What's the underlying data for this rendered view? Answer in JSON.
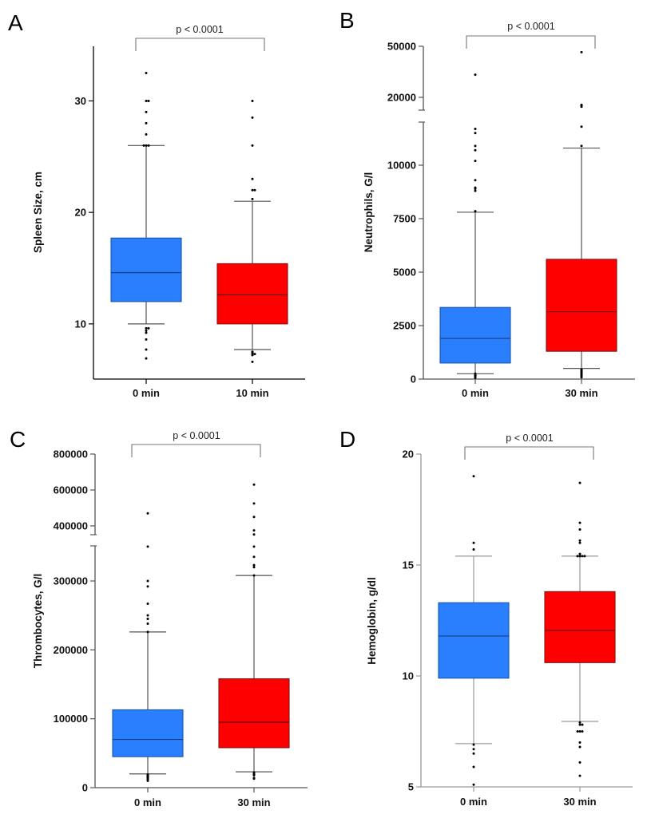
{
  "figure": {
    "groups_color": {
      "0 min": "#2a7fff",
      "later": "#ff0000"
    }
  },
  "chart_data": [
    {
      "id": "A",
      "type": "box",
      "panel_letter": "A",
      "title": "",
      "xlabel": "",
      "ylabel": "Spleen Size, cm",
      "categories": [
        "0 min",
        "10 min"
      ],
      "colors": [
        "#2a7fff",
        "#ff0000"
      ],
      "yticks": [
        10,
        20,
        30
      ],
      "ylim": [
        5,
        35
      ],
      "axis_break": null,
      "significance": {
        "label": "p < 0.0001",
        "between": [
          0,
          1
        ]
      },
      "series": [
        {
          "name": "0 min",
          "q1": 12.0,
          "median": 14.6,
          "q3": 17.7,
          "whisker_low": 10.0,
          "whisker_high": 26.0,
          "outliers": [
            32.5,
            30.0,
            30.0,
            29.0,
            28.0,
            27.0,
            26.0,
            26.0,
            26.0,
            9.6,
            9.6,
            9.4,
            9.2,
            8.6,
            7.7,
            6.9
          ]
        },
        {
          "name": "10 min",
          "q1": 10.0,
          "median": 12.6,
          "q3": 15.4,
          "whisker_low": 7.7,
          "whisker_high": 21.0,
          "outliers": [
            30.0,
            28.5,
            26.0,
            23.0,
            22.0,
            22.0,
            21.2,
            7.5,
            7.4,
            7.3,
            7.3,
            7.2,
            6.6
          ]
        }
      ],
      "grid": false,
      "legend": "none"
    },
    {
      "id": "B",
      "type": "box",
      "panel_letter": "B",
      "title": "",
      "xlabel": "",
      "ylabel": "Neutrophils, G/l",
      "categories": [
        "0 min",
        "30 min"
      ],
      "colors": [
        "#2a7fff",
        "#ff0000"
      ],
      "yticks": [
        0,
        2500,
        5000,
        7500,
        10000,
        20000,
        50000
      ],
      "ylim": [
        0,
        50000
      ],
      "axis_break": {
        "lower_range": [
          0,
          12000
        ],
        "upper_range": [
          15000,
          50000
        ],
        "upper_scale": "log"
      },
      "significance": {
        "label": "p < 0.0001",
        "between": [
          0,
          1
        ]
      },
      "series": [
        {
          "name": "0 min",
          "q1": 750,
          "median": 1900,
          "q3": 3350,
          "whisker_low": 250,
          "whisker_high": 7800,
          "outliers": [
            30000,
            11700,
            11500,
            10900,
            10700,
            10200,
            9300,
            8950,
            8800,
            8900,
            7850,
            250,
            220,
            200,
            180,
            150,
            120,
            100,
            80,
            60
          ]
        },
        {
          "name": "30 min",
          "q1": 1300,
          "median": 3150,
          "q3": 5600,
          "whisker_low": 500,
          "whisker_high": 10800,
          "outliers": [
            45000,
            17500,
            17300,
            17200,
            17100,
            17000,
            16900,
            11800,
            10900,
            450,
            400,
            350,
            300,
            250,
            200,
            150,
            80
          ]
        }
      ],
      "grid": false,
      "legend": "none"
    },
    {
      "id": "C",
      "type": "box",
      "panel_letter": "C",
      "title": "",
      "xlabel": "",
      "ylabel": "Thrombocytes, G/l",
      "categories": [
        "0 min",
        "30 min"
      ],
      "colors": [
        "#2a7fff",
        "#ff0000"
      ],
      "yticks": [
        0,
        100000,
        200000,
        300000,
        400000,
        600000,
        800000
      ],
      "ylim": [
        0,
        800000
      ],
      "axis_break": {
        "lower_range": [
          0,
          352000
        ],
        "upper_range": [
          368000,
          800000
        ],
        "upper_scale": "linear"
      },
      "significance": {
        "label": "p < 0.0001",
        "between": [
          0,
          1
        ]
      },
      "series": [
        {
          "name": "0 min",
          "q1": 45000,
          "median": 70000,
          "q3": 113000,
          "whisker_low": 20000,
          "whisker_high": 226000,
          "outliers": [
            470000,
            350000,
            300000,
            292000,
            267000,
            250000,
            245000,
            238000,
            226000,
            19000,
            18000,
            17000,
            16000,
            15000,
            14000,
            12000,
            10000
          ]
        },
        {
          "name": "30 min",
          "q1": 58000,
          "median": 95000,
          "q3": 158000,
          "whisker_low": 23000,
          "whisker_high": 308000,
          "outliers": [
            630000,
            525000,
            450000,
            375000,
            352000,
            350000,
            335000,
            323000,
            320000,
            308000,
            22000,
            20000,
            19000,
            18000,
            14000,
            13000
          ]
        }
      ],
      "grid": false,
      "legend": "none"
    },
    {
      "id": "D",
      "type": "box",
      "panel_letter": "D",
      "title": "",
      "xlabel": "",
      "ylabel": "Hemoglobin, g/dl",
      "categories": [
        "0 min",
        "30 min"
      ],
      "colors": [
        "#2a7fff",
        "#ff0000"
      ],
      "yticks": [
        5,
        10,
        15,
        20
      ],
      "ylim": [
        5,
        20
      ],
      "axis_break": null,
      "significance": {
        "label": "p < 0.0001",
        "between": [
          0,
          1
        ]
      },
      "series": [
        {
          "name": "0 min",
          "q1": 9.9,
          "median": 11.8,
          "q3": 13.3,
          "whisker_low": 6.95,
          "whisker_high": 15.4,
          "outliers": [
            19.0,
            16.0,
            15.7,
            6.9,
            6.7,
            6.5,
            5.9,
            5.1
          ]
        },
        {
          "name": "30 min",
          "q1": 10.6,
          "median": 12.05,
          "q3": 13.8,
          "whisker_low": 7.95,
          "whisker_high": 15.4,
          "outliers": [
            18.7,
            16.9,
            16.6,
            16.1,
            16.0,
            15.5,
            15.4,
            15.4,
            15.4,
            15.4,
            7.9,
            7.8,
            7.8,
            7.5,
            7.5,
            7.5,
            7.0,
            6.8,
            6.1,
            5.5
          ]
        }
      ],
      "grid": false,
      "legend": "none"
    }
  ]
}
